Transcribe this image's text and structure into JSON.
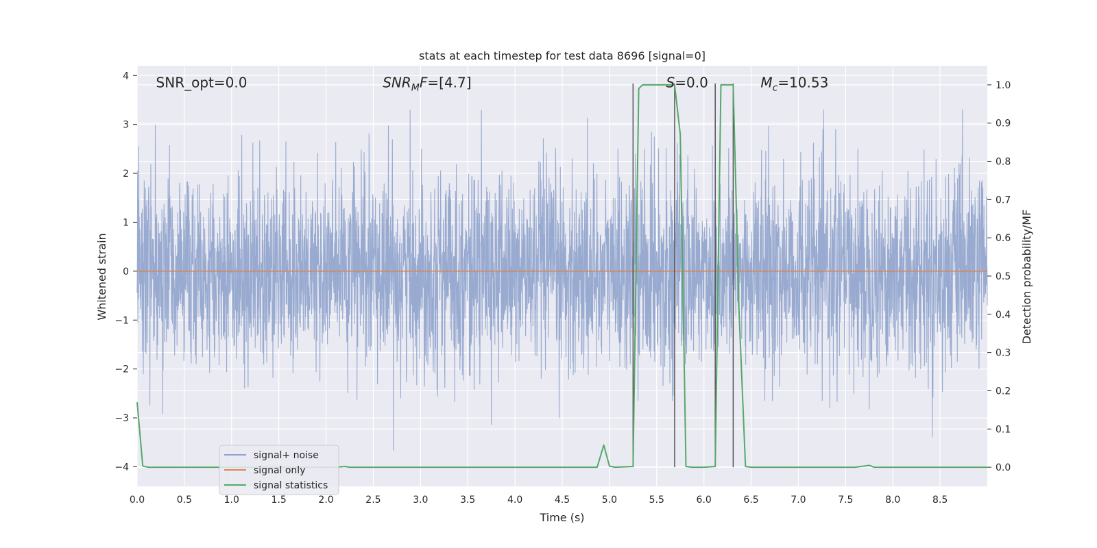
{
  "chart_data": {
    "type": "line",
    "title": "stats at each timestep for test data 8696 [signal=0]",
    "xlabel": "Time (s)",
    "ylabel_left": "Whitened strain",
    "ylabel_right": "Detection probability/MF",
    "xlim": [
      0.0,
      9.0
    ],
    "ylim_left": [
      -4.4,
      4.2
    ],
    "ylim_right": [
      -0.05,
      1.05
    ],
    "x_ticks": [
      0.0,
      0.5,
      1.0,
      1.5,
      2.0,
      2.5,
      3.0,
      3.5,
      4.0,
      4.5,
      5.0,
      5.5,
      6.0,
      6.5,
      7.0,
      7.5,
      8.0,
      8.5
    ],
    "x_tick_labels": [
      "0.0",
      "0.5",
      "1.0",
      "1.5",
      "2.0",
      "2.5",
      "3.0",
      "3.5",
      "4.0",
      "4.5",
      "5.0",
      "5.5",
      "6.0",
      "6.5",
      "7.0",
      "7.5",
      "8.0",
      "8.5"
    ],
    "y_left_ticks": [
      4,
      3,
      2,
      1,
      0,
      -1,
      -2,
      -3,
      -4
    ],
    "y_left_tick_labels": [
      "4",
      "3",
      "2",
      "1",
      "0",
      "−1",
      "−2",
      "−3",
      "−4"
    ],
    "y_right_ticks": [
      1.0,
      0.9,
      0.8,
      0.7,
      0.6,
      0.5,
      0.4,
      0.3,
      0.2,
      0.1,
      0.0
    ],
    "y_right_tick_labels": [
      "1.0",
      "0.9",
      "0.8",
      "0.7",
      "0.6",
      "0.5",
      "0.4",
      "0.3",
      "0.2",
      "0.1",
      "0.0"
    ],
    "grid": true,
    "legend_position": "lower-left",
    "series": [
      {
        "name": "signal+ noise",
        "axis": "left",
        "color": "#8fa3cc",
        "description": "whitened noise, roughly Gaussian, unit variance",
        "x_range": [
          0.0,
          9.0
        ],
        "sigma": 1.0
      },
      {
        "name": "signal only",
        "axis": "left",
        "color": "#dd8452",
        "x": [
          0.0,
          9.0
        ],
        "y": [
          0.0,
          0.0
        ]
      },
      {
        "name": "signal statistics",
        "axis": "right",
        "color": "#55a868",
        "x": [
          0.0,
          0.06,
          0.12,
          0.5,
          1.0,
          1.5,
          2.0,
          2.1,
          2.2,
          2.25,
          3.0,
          3.5,
          4.0,
          4.5,
          4.87,
          4.94,
          5.0,
          5.06,
          5.25,
          5.31,
          5.35,
          5.4,
          5.5,
          5.6,
          5.69,
          5.75,
          5.81,
          5.87,
          6.0,
          6.12,
          6.18,
          6.25,
          6.31,
          6.37,
          6.44,
          6.5,
          7.0,
          7.6,
          7.7,
          7.75,
          7.8,
          8.0,
          8.5,
          9.0
        ],
        "y": [
          0.17,
          0.003,
          0.0,
          0.0,
          0.0,
          0.0,
          0.0,
          0.0,
          0.002,
          0.0,
          0.0,
          0.0,
          0.0,
          0.0,
          0.0,
          0.058,
          0.003,
          0.0,
          0.002,
          0.99,
          1.0,
          1.0,
          1.0,
          1.0,
          1.0,
          0.87,
          0.002,
          0.0,
          0.0,
          0.002,
          1.0,
          1.0,
          1.0,
          0.42,
          0.002,
          0.0,
          0.0,
          0.0,
          0.003,
          0.005,
          0.0,
          0.0,
          0.0,
          0.0
        ]
      }
    ],
    "vertical_markers": [
      {
        "x": 5.25,
        "color": "#555555"
      },
      {
        "x": 5.69,
        "color": "#555555"
      },
      {
        "x": 6.12,
        "color": "#555555"
      },
      {
        "x": 6.31,
        "color": "#555555"
      }
    ],
    "annotations": [
      {
        "text": "SNR_opt=0.0",
        "x": 0.2,
        "y": 3.86,
        "style": "normal"
      },
      {
        "text": "SNR",
        "sub": "M",
        "suffix": "F=[4.7]",
        "x": 2.6,
        "y": 3.86,
        "style": "italic-math"
      },
      {
        "text": "S",
        "suffix": "=0.0",
        "x": 5.6,
        "y": 3.86,
        "style": "italic-math"
      },
      {
        "text": "M",
        "sub": "c",
        "suffix": "=10.53",
        "x": 6.6,
        "y": 3.86,
        "style": "italic-math"
      }
    ]
  }
}
